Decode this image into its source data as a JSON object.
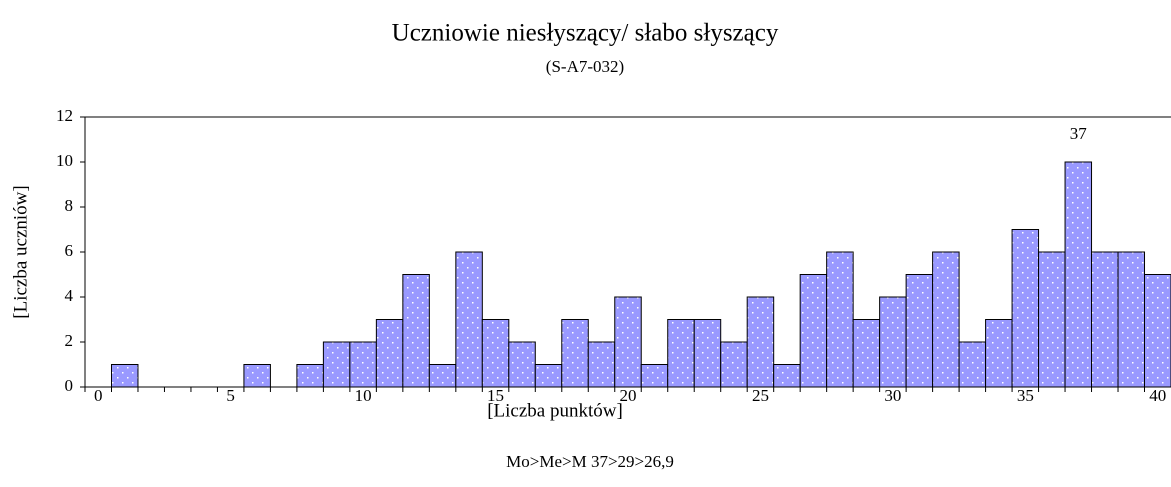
{
  "chart_data": {
    "type": "bar",
    "title": "Uczniowie niesłyszący/ słabo słyszący",
    "subtitle": "(S-A7-032)",
    "x_label": "[Liczba punktów]",
    "y_label": "[Liczba uczniów]",
    "note": "Mo>Me>M   37>29>26,9",
    "x": [
      0,
      1,
      2,
      3,
      4,
      5,
      6,
      7,
      8,
      9,
      10,
      11,
      12,
      13,
      14,
      15,
      16,
      17,
      18,
      19,
      20,
      21,
      22,
      23,
      24,
      25,
      26,
      27,
      28,
      29,
      30,
      31,
      32,
      33,
      34,
      35,
      36,
      37,
      38,
      39,
      40
    ],
    "values": [
      0,
      1,
      0,
      0,
      0,
      0,
      1,
      0,
      1,
      2,
      2,
      3,
      5,
      1,
      6,
      3,
      2,
      1,
      3,
      2,
      4,
      1,
      3,
      3,
      2,
      4,
      1,
      5,
      6,
      3,
      4,
      5,
      6,
      2,
      3,
      7,
      6,
      10,
      6,
      6,
      5
    ],
    "color": "#9999ff",
    "xlim": [
      -0.5,
      40.5
    ],
    "xticks": [
      0,
      5,
      10,
      15,
      20,
      25,
      30,
      35,
      40
    ],
    "ylim": [
      0,
      12
    ],
    "yticks": [
      0,
      2,
      4,
      6,
      8,
      10,
      12
    ],
    "annotations": [
      {
        "text": "37",
        "x": 37,
        "y": 10
      }
    ]
  }
}
